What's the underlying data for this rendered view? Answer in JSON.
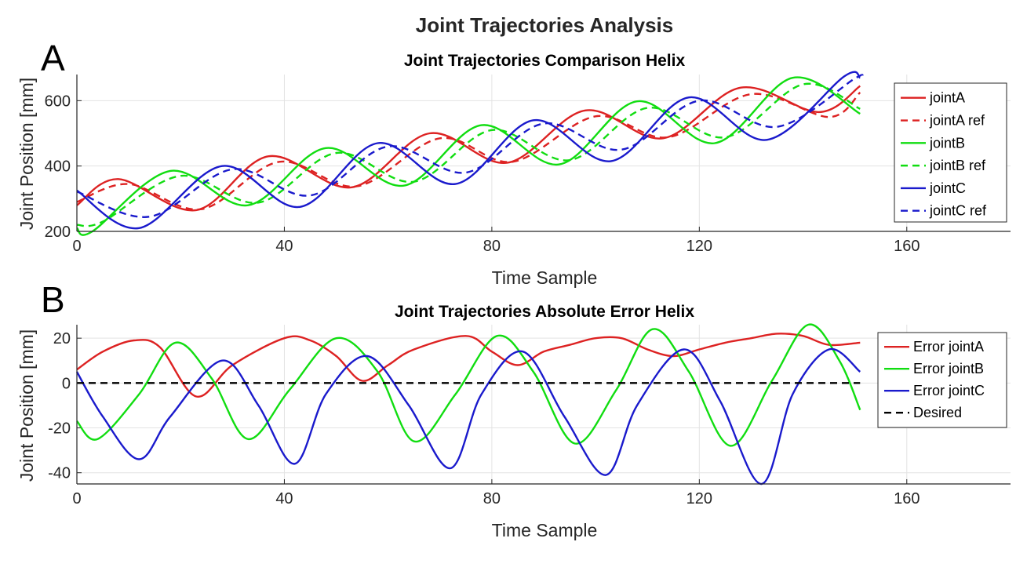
{
  "figure_title": "Joint Trajectories Analysis",
  "chart_data": [
    {
      "panel_letter": "A",
      "type": "line",
      "title": "Joint Trajectories Comparison Helix",
      "xlabel": "Time Sample",
      "ylabel": "Joint Position [mm]",
      "xlim": [
        0,
        180
      ],
      "ylim": [
        200,
        680
      ],
      "xticks": [
        0,
        40,
        80,
        120,
        160
      ],
      "yticks": [
        200,
        400,
        600
      ],
      "grid": true,
      "legend_position": "top-right",
      "series": [
        {
          "name": "jointA",
          "color": "#dd2222",
          "dashed": false,
          "x": [
            0,
            8,
            23,
            37,
            53,
            68,
            83,
            98,
            113,
            128,
            143,
            151
          ],
          "y": [
            280,
            360,
            265,
            430,
            335,
            500,
            410,
            570,
            485,
            640,
            565,
            645
          ]
        },
        {
          "name": "jointA ref",
          "color": "#dd2222",
          "dashed": true,
          "x": [
            0,
            10,
            24,
            39,
            54,
            70,
            84,
            100,
            114,
            130,
            145,
            151
          ],
          "y": [
            290,
            345,
            268,
            413,
            338,
            485,
            413,
            552,
            488,
            620,
            550,
            625
          ]
        },
        {
          "name": "jointB",
          "color": "#11dd11",
          "dashed": false,
          "x": [
            0,
            3,
            18,
            33,
            48,
            63,
            78,
            93,
            108,
            123,
            138,
            151
          ],
          "y": [
            210,
            200,
            385,
            280,
            455,
            340,
            525,
            405,
            598,
            470,
            670,
            560
          ]
        },
        {
          "name": "jointB ref",
          "color": "#11dd11",
          "dashed": true,
          "x": [
            0,
            5,
            20,
            35,
            50,
            65,
            80,
            95,
            110,
            125,
            140,
            151
          ],
          "y": [
            220,
            230,
            370,
            288,
            440,
            352,
            510,
            418,
            578,
            488,
            650,
            575
          ]
        },
        {
          "name": "jointC",
          "color": "#1a1acc",
          "dashed": false,
          "x": [
            0,
            12,
            28,
            43,
            58,
            73,
            88,
            103,
            118,
            133,
            148,
            151
          ],
          "y": [
            325,
            210,
            400,
            275,
            470,
            345,
            540,
            415,
            610,
            480,
            675,
            670
          ]
        },
        {
          "name": "jointC ref",
          "color": "#1a1acc",
          "dashed": true,
          "x": [
            0,
            14,
            30,
            45,
            60,
            75,
            90,
            105,
            120,
            135,
            150,
            151
          ],
          "y": [
            322,
            245,
            390,
            310,
            460,
            380,
            530,
            450,
            600,
            520,
            668,
            668
          ]
        }
      ]
    },
    {
      "panel_letter": "B",
      "type": "line",
      "title": "Joint Trajectories Absolute Error Helix",
      "xlabel": "Time Sample",
      "ylabel": "Joint Position [mm]",
      "xlim": [
        0,
        180
      ],
      "ylim": [
        -45,
        26
      ],
      "xticks": [
        0,
        40,
        80,
        120,
        160
      ],
      "yticks": [
        -40,
        -20,
        0,
        20
      ],
      "grid": true,
      "legend_position": "top-right",
      "series": [
        {
          "name": "Error jointA",
          "color": "#dd2222",
          "dashed": false,
          "x": [
            0,
            5,
            11,
            16,
            23,
            30,
            40,
            45,
            50,
            55,
            60,
            65,
            75,
            80,
            85,
            90,
            95,
            100,
            105,
            110,
            115,
            120,
            125,
            130,
            135,
            140,
            145,
            151
          ],
          "y": [
            6,
            14,
            19,
            16,
            -6,
            8,
            20,
            19,
            12,
            1,
            8,
            15,
            21,
            14,
            8,
            14,
            17,
            20,
            20,
            15,
            12,
            15,
            18,
            20,
            22,
            21,
            17,
            18
          ]
        },
        {
          "name": "Error jointB",
          "color": "#11dd11",
          "dashed": false,
          "x": [
            0,
            4,
            12,
            19,
            26,
            33,
            41,
            50,
            58,
            65,
            73,
            81,
            88,
            96,
            104,
            111,
            118,
            126,
            134,
            141,
            147,
            151
          ],
          "y": [
            -17,
            -25,
            -5,
            18,
            2,
            -25,
            -3,
            20,
            5,
            -26,
            -5,
            21,
            5,
            -27,
            -3,
            24,
            5,
            -28,
            1,
            26,
            10,
            -12
          ]
        },
        {
          "name": "Error jointC",
          "color": "#1a1acc",
          "dashed": false,
          "x": [
            0,
            5,
            12,
            18,
            28,
            35,
            42,
            48,
            56,
            64,
            72,
            78,
            86,
            94,
            102,
            108,
            117,
            124,
            132,
            138,
            145,
            151
          ],
          "y": [
            5,
            -15,
            -34,
            -15,
            10,
            -10,
            -36,
            -5,
            12,
            -10,
            -38,
            -5,
            14,
            -15,
            -41,
            -10,
            15,
            -8,
            -45,
            -5,
            15,
            5
          ]
        },
        {
          "name": "Desired",
          "color": "#000000",
          "dashed": true,
          "x": [
            0,
            151
          ],
          "y": [
            0,
            0
          ]
        }
      ]
    }
  ]
}
